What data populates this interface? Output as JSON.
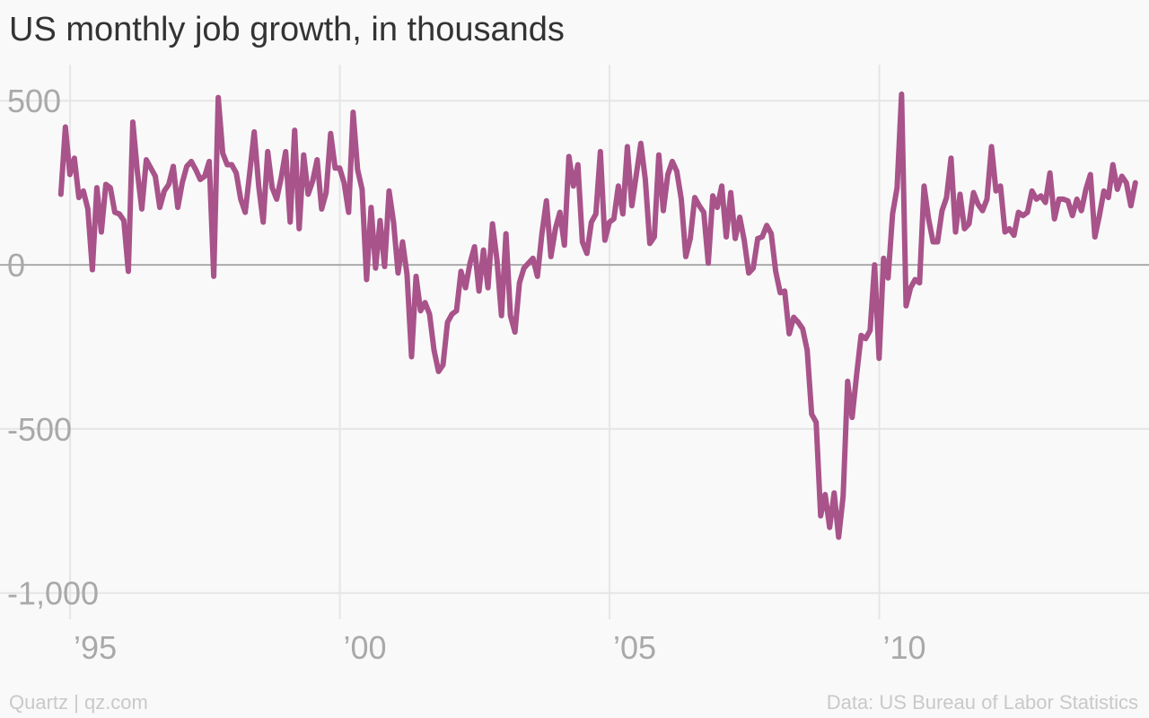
{
  "title": "US monthly job growth, in thousands",
  "footer": {
    "left": "Quartz | qz.com",
    "right": "Data: US Bureau of Labor Statistics"
  },
  "colors": {
    "line": "#a8538a",
    "grid": "#e6e6e6",
    "zero_line": "#aaaaaa",
    "tick_text": "#a9a9a9",
    "background": "#f9f9f9"
  },
  "chart_data": {
    "type": "line",
    "title": "US monthly job growth, in thousands",
    "xlabel": "",
    "ylabel": "",
    "x_start": 1994.83,
    "x_step_months": 1,
    "xlim": [
      1994.5,
      2014.8
    ],
    "ylim": [
      -1080,
      610
    ],
    "y_ticks": [
      {
        "value": 500,
        "label": "500"
      },
      {
        "value": 0,
        "label": "0"
      },
      {
        "value": -500,
        "label": "-500"
      },
      {
        "value": -1000,
        "label": "-1,000"
      }
    ],
    "x_ticks": [
      {
        "value": 1995,
        "label": "’95"
      },
      {
        "value": 2000,
        "label": "’00"
      },
      {
        "value": 2005,
        "label": "’05"
      },
      {
        "value": 2010,
        "label": "’10"
      }
    ],
    "grid": true,
    "series": [
      {
        "values": [
          215,
          420,
          275,
          325,
          205,
          225,
          170,
          -15,
          235,
          100,
          245,
          235,
          160,
          155,
          135,
          -20,
          435,
          285,
          170,
          320,
          295,
          270,
          175,
          225,
          245,
          300,
          175,
          250,
          300,
          315,
          290,
          260,
          270,
          315,
          -35,
          510,
          340,
          305,
          305,
          280,
          200,
          160,
          280,
          405,
          240,
          130,
          345,
          235,
          200,
          265,
          345,
          130,
          410,
          110,
          335,
          215,
          255,
          320,
          170,
          220,
          400,
          295,
          295,
          250,
          160,
          465,
          290,
          230,
          -45,
          175,
          -10,
          135,
          -5,
          225,
          130,
          -25,
          70,
          -30,
          -280,
          -35,
          -140,
          -115,
          -150,
          -260,
          -325,
          -305,
          -175,
          -150,
          -140,
          -20,
          -70,
          5,
          55,
          -80,
          45,
          -70,
          125,
          15,
          -155,
          95,
          -155,
          -205,
          -55,
          -10,
          5,
          20,
          -35,
          95,
          195,
          25,
          110,
          160,
          60,
          330,
          240,
          305,
          70,
          35,
          130,
          155,
          345,
          75,
          130,
          140,
          240,
          155,
          360,
          180,
          275,
          370,
          260,
          65,
          85,
          335,
          165,
          275,
          315,
          285,
          200,
          25,
          80,
          205,
          180,
          160,
          5,
          210,
          175,
          240,
          85,
          220,
          80,
          145,
          75,
          -25,
          -10,
          80,
          85,
          120,
          95,
          -20,
          -85,
          -80,
          -210,
          -160,
          -175,
          -195,
          -260,
          -455,
          -480,
          -765,
          -700,
          -800,
          -695,
          -830,
          -705,
          -355,
          -465,
          -335,
          -215,
          -225,
          -200,
          0,
          -285,
          20,
          -40,
          155,
          235,
          520,
          -125,
          -70,
          -45,
          -55,
          240,
          140,
          70,
          70,
          165,
          205,
          325,
          100,
          215,
          110,
          125,
          220,
          185,
          165,
          200,
          360,
          225,
          240,
          100,
          110,
          90,
          160,
          150,
          160,
          225,
          200,
          210,
          190,
          280,
          140,
          200,
          200,
          195,
          150,
          200,
          165,
          230,
          275,
          85,
          150,
          225,
          205,
          305,
          230,
          270,
          250,
          180,
          250
        ]
      }
    ]
  }
}
